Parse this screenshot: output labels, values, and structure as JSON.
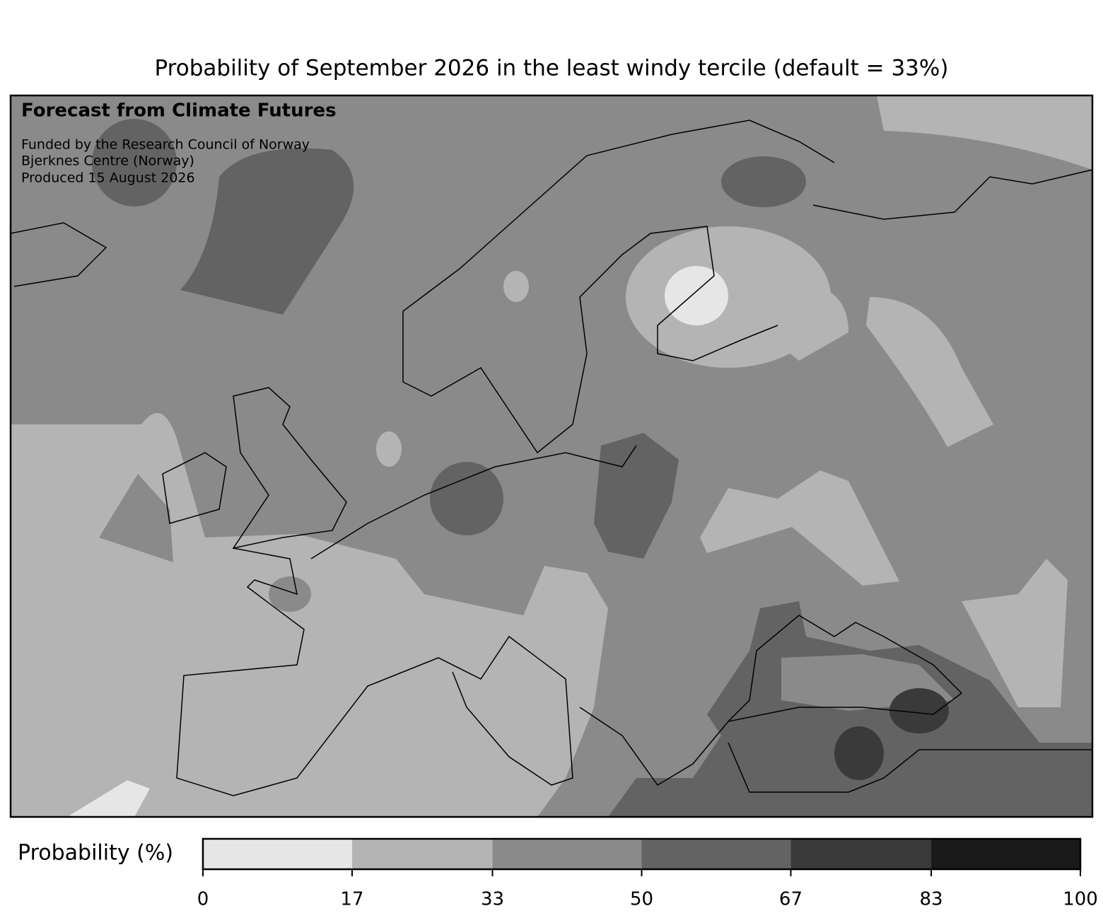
{
  "title": "Probability of September 2026 in the least windy tercile (default = 33%)",
  "annotations": {
    "heading": "Forecast from Climate Futures",
    "lines": [
      "Funded by the Research Council of Norway",
      "Bjerknes Centre (Norway)",
      "Produced 15 August 2026"
    ]
  },
  "colorbar": {
    "label": "Probability (%)",
    "lim": [
      0,
      100
    ],
    "ticks": [
      0,
      17,
      33,
      50,
      67,
      83,
      100
    ],
    "colors": [
      "#e6e6e6",
      "#b4b4b4",
      "#8a8a8a",
      "#636363",
      "#3a3a3a",
      "#1a1a1a"
    ]
  }
}
